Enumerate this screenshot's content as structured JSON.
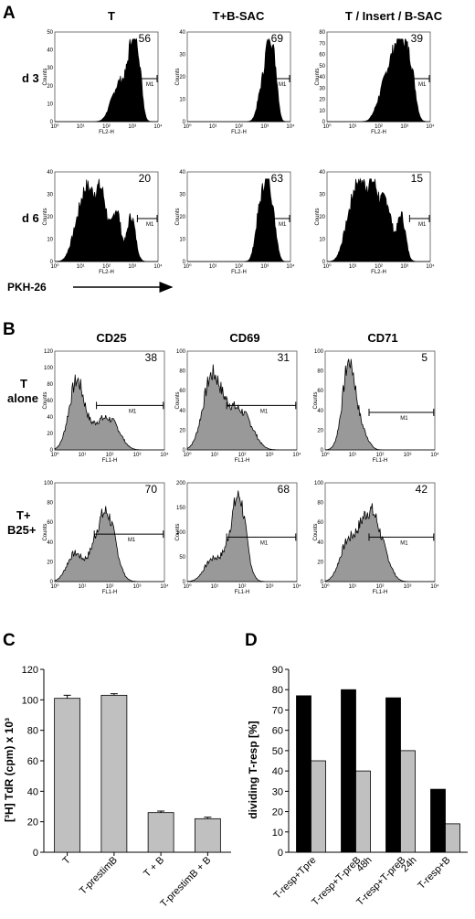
{
  "panel_a": {
    "letter": "A",
    "columns": [
      "T",
      "T+B-SAC",
      "T / Insert / B-SAC"
    ],
    "rows": [
      "d 3",
      "d 6"
    ],
    "x_axis_label": "FL2-H",
    "y_axis_label": "Counts",
    "gate_label": "M1",
    "bottom_label": "PKH-26",
    "percentages": [
      [
        "56",
        "69",
        "39"
      ],
      [
        "20",
        "63",
        "15"
      ]
    ],
    "x_tick_labels": [
      "10⁰",
      "10¹",
      "10²",
      "10³",
      "10⁴"
    ],
    "y_ticks": [
      [
        "0",
        "10",
        "20",
        "30",
        "40",
        "50"
      ],
      [
        "0",
        "10",
        "20",
        "30",
        "40"
      ],
      [
        "0",
        "10",
        "20",
        "30",
        "40",
        "50",
        "60",
        "70",
        "80"
      ],
      [
        "0",
        "10",
        "20",
        "30",
        "40"
      ],
      [
        "0",
        "10",
        "20",
        "30",
        "40"
      ],
      [
        "0",
        "10",
        "20",
        "30",
        "40"
      ]
    ]
  },
  "panel_b": {
    "letter": "B",
    "columns": [
      "CD25",
      "CD69",
      "CD71"
    ],
    "rows": [
      "T\nalone",
      "T+\nB25+"
    ],
    "row_lines": [
      [
        "T",
        "alone"
      ],
      [
        "T+",
        "B25+"
      ]
    ],
    "x_axis_label": "FL1-H",
    "y_axis_label": "Counts",
    "gate_label": "M1",
    "percentages": [
      [
        "38",
        "31",
        "5"
      ],
      [
        "70",
        "68",
        "42"
      ]
    ],
    "x_tick_labels": [
      "10⁰",
      "10¹",
      "10²",
      "10³",
      "10⁴"
    ],
    "y_ticks": [
      [
        "0",
        "20",
        "40",
        "60",
        "80",
        "100",
        "120"
      ],
      [
        "0",
        "20",
        "40",
        "60",
        "80",
        "100"
      ],
      [
        "0",
        "20",
        "40",
        "60",
        "80",
        "100"
      ],
      [
        "0",
        "20",
        "40",
        "60",
        "80",
        "100"
      ],
      [
        "0",
        "50",
        "100",
        "150",
        "200"
      ],
      [
        "0",
        "20",
        "40",
        "60",
        "80",
        "100"
      ]
    ],
    "hist_fill": "#999999"
  },
  "chart_data": [
    {
      "panel": "C",
      "type": "bar",
      "categories": [
        "T",
        "T-prestimB",
        "T + B",
        "T-prestimB + B"
      ],
      "values": [
        101,
        103,
        26,
        22
      ],
      "errors": [
        2,
        1,
        1,
        1
      ],
      "ylabel": "[³H] TdR (cpm) x 10³",
      "ylim": [
        0,
        120
      ],
      "yticks": [
        0,
        20,
        40,
        60,
        80,
        100,
        120
      ],
      "bar_color": "#c0c0c0",
      "grid": false
    },
    {
      "panel": "D",
      "type": "bar",
      "categories": [
        "T-resp+Tpre",
        "T-resp+T-preB 48h",
        "T-resp+T-preB 24h",
        "T-resp+B"
      ],
      "category_lines": [
        [
          "T-resp+Tpre"
        ],
        [
          "T-resp+T-preB",
          "48h"
        ],
        [
          "T-resp+T-preB",
          "24h"
        ],
        [
          "T-resp+B"
        ]
      ],
      "series": [
        {
          "values": [
            77,
            80,
            76,
            31
          ],
          "color": "#000000"
        },
        {
          "values": [
            45,
            40,
            50,
            14
          ],
          "color": "#c0c0c0"
        }
      ],
      "ylabel": "dividing T-resp [%]",
      "ylim": [
        0,
        90
      ],
      "yticks": [
        0,
        10,
        20,
        30,
        40,
        50,
        60,
        70,
        80,
        90
      ],
      "grid": false
    }
  ]
}
